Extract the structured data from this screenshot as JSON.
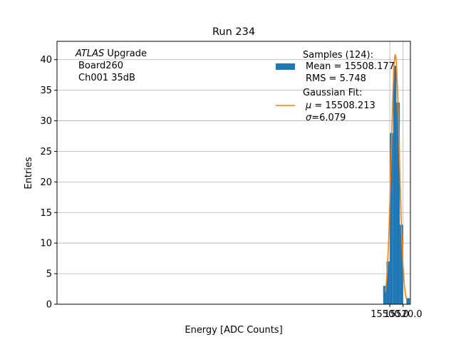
{
  "chart_data": {
    "type": "histogram",
    "title": "Run 234",
    "xlabel": "Energy [ADC Counts]",
    "ylabel": "Entries",
    "xlim": [
      14998.7,
      15531.0
    ],
    "ylim": [
      0,
      43
    ],
    "xticks": [
      {
        "value": 15500.0,
        "label": "15500.0"
      },
      {
        "value": 15520.0,
        "label": "15520.0"
      }
    ],
    "yticks": [
      0,
      5,
      10,
      15,
      20,
      25,
      30,
      35,
      40
    ],
    "grid": true,
    "bins": [
      {
        "x0": 15490.0,
        "x1": 15495.0,
        "count": 3
      },
      {
        "x0": 15495.0,
        "x1": 15500.0,
        "count": 7
      },
      {
        "x0": 15500.0,
        "x1": 15505.0,
        "count": 28
      },
      {
        "x0": 15505.0,
        "x1": 15510.0,
        "count": 39
      },
      {
        "x0": 15510.0,
        "x1": 15515.0,
        "count": 33
      },
      {
        "x0": 15515.0,
        "x1": 15520.0,
        "count": 13
      },
      {
        "x0": 15520.0,
        "x1": 15525.0,
        "count": 0
      },
      {
        "x0": 15525.0,
        "x1": 15530.0,
        "count": 1
      }
    ],
    "fit": {
      "type": "gaussian",
      "amplitude": 40.8,
      "mu": 15508.213,
      "sigma": 6.079,
      "x_range": [
        15493.3,
        15525.5
      ]
    },
    "colors": {
      "bars": "#1f77b4",
      "fit": "#ff7f0e",
      "grid": "#b0b0b0"
    },
    "annotation": {
      "italic": "ATLAS",
      "first_suffix": " Upgrade",
      "line2": "Board260",
      "line3": "Ch001 35dB"
    },
    "legend": {
      "placement": "top-right",
      "samples_title": "Samples (124):",
      "samples_mean": "Mean = 15508.177",
      "samples_rms": "RMS = 5.748",
      "fit_title": "Gaussian Fit:",
      "fit_mu_symbol": "μ",
      "fit_mu_value": " = 15508.213",
      "fit_sigma_symbol": "σ",
      "fit_sigma_value": "=6.079"
    }
  }
}
